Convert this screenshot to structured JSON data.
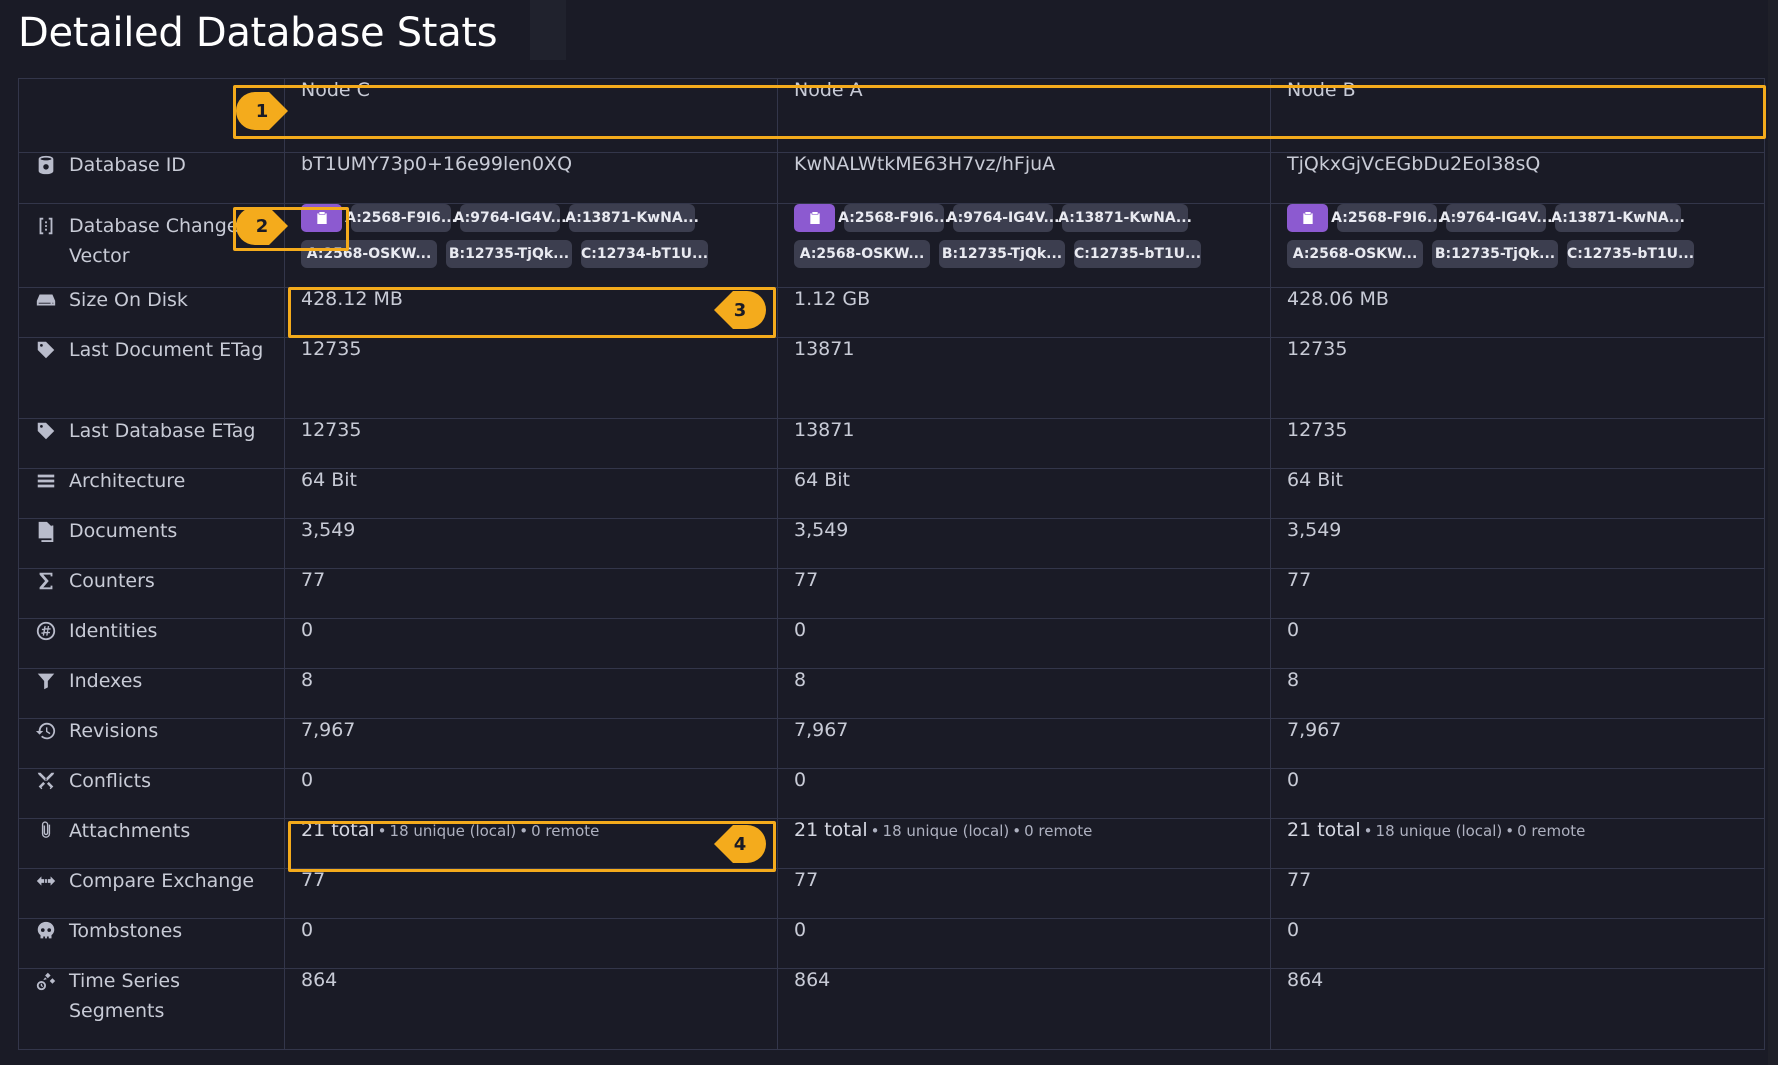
{
  "page": {
    "title": "Detailed Database Stats"
  },
  "nodes": [
    "Node C",
    "Node A",
    "Node B"
  ],
  "rows": [
    {
      "label": "Database ID",
      "icon": "database-id-icon",
      "values": [
        "bT1UMY73p0+16e99len0XQ",
        "KwNALWtkME63H7vz/hFjuA",
        "TjQkxGjVcEGbDu2EoI38sQ"
      ]
    },
    {
      "label": "Size On Disk",
      "icon": "disk-icon",
      "values": [
        "428.12 MB",
        "1.12 GB",
        "428.06 MB"
      ]
    },
    {
      "label": "Last Document ETag",
      "icon": "tag-icon",
      "values": [
        "12735",
        "13871",
        "12735"
      ]
    },
    {
      "label": "Last Database ETag",
      "icon": "tag-icon",
      "values": [
        "12735",
        "13871",
        "12735"
      ]
    },
    {
      "label": "Architecture",
      "icon": "architecture-icon",
      "values": [
        "64 Bit",
        "64 Bit",
        "64 Bit"
      ]
    },
    {
      "label": "Documents",
      "icon": "documents-icon",
      "values": [
        "3,549",
        "3,549",
        "3,549"
      ]
    },
    {
      "label": "Counters",
      "icon": "sigma-icon",
      "values": [
        "77",
        "77",
        "77"
      ]
    },
    {
      "label": "Identities",
      "icon": "hash-icon",
      "values": [
        "0",
        "0",
        "0"
      ]
    },
    {
      "label": "Indexes",
      "icon": "index-icon",
      "values": [
        "8",
        "8",
        "8"
      ]
    },
    {
      "label": "Revisions",
      "icon": "revisions-icon",
      "values": [
        "7,967",
        "7,967",
        "7,967"
      ]
    },
    {
      "label": "Conflicts",
      "icon": "conflicts-icon",
      "values": [
        "0",
        "0",
        "0"
      ]
    },
    {
      "label": "Attachments",
      "icon": "paperclip-icon"
    },
    {
      "label": "Compare Exchange",
      "icon": "compare-exchange-icon",
      "values": [
        "77",
        "77",
        "77"
      ]
    },
    {
      "label": "Tombstones",
      "icon": "skull-icon",
      "values": [
        "0",
        "0",
        "0"
      ]
    },
    {
      "label": "Time Series Segments",
      "icon": "timeseries-icon",
      "values": [
        "864",
        "864",
        "864"
      ]
    }
  ],
  "change_vector": {
    "label": "Database Change Vector",
    "icon": "change-vector-icon",
    "copy_icon": "copy-icon",
    "values": [
      [
        "A:2568-F9I6...",
        "A:9764-IG4V...",
        "A:13871-KwNA...",
        "A:2568-OSKW...",
        "B:12735-TjQk...",
        "C:12734-bT1U..."
      ],
      [
        "A:2568-F9I6...",
        "A:9764-IG4V...",
        "A:13871-KwNA...",
        "A:2568-OSKW...",
        "B:12735-TjQk...",
        "C:12735-bT1U..."
      ],
      [
        "A:2568-F9I6...",
        "A:9764-IG4V...",
        "A:13871-KwNA...",
        "A:2568-OSKW...",
        "B:12735-TjQk...",
        "C:12735-bT1U..."
      ]
    ]
  },
  "attachments": [
    {
      "total": "21 total",
      "sep": "•",
      "unique": "18 unique (local)",
      "remote": "0 remote"
    },
    {
      "total": "21 total",
      "sep": "•",
      "unique": "18 unique (local)",
      "remote": "0 remote"
    },
    {
      "total": "21 total",
      "sep": "•",
      "unique": "18 unique (local)",
      "remote": "0 remote"
    }
  ],
  "annotations": {
    "color": "#f4ab1c",
    "markers": [
      "1",
      "2",
      "3",
      "4"
    ]
  },
  "colors": {
    "background": "#1a1b26",
    "border": "#33364a",
    "copy_button": "#8c5ad0",
    "tag": "#3c3e4f",
    "highlight": "#f4ab1c"
  }
}
